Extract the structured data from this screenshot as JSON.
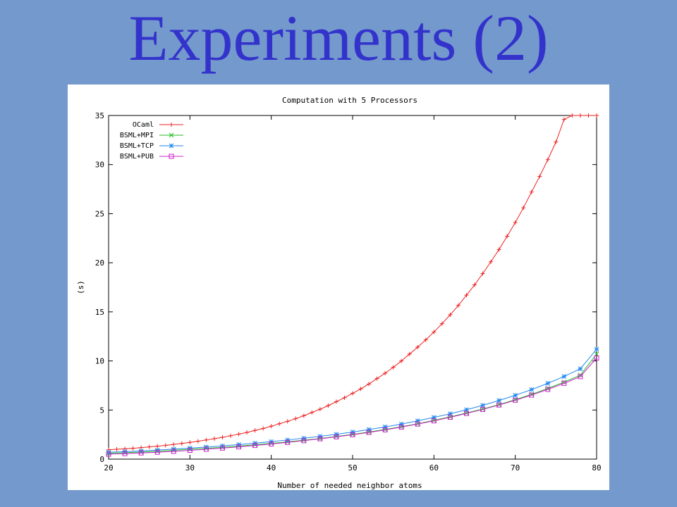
{
  "slide": {
    "title": "Experiments (2)"
  },
  "chart_data": {
    "type": "line",
    "title": "Computation with 5 Processors",
    "xlabel": "Number of needed neighbor atoms",
    "ylabel": "(s)",
    "xlim": [
      20,
      80
    ],
    "ylim": [
      0,
      35
    ],
    "xticks": [
      20,
      30,
      40,
      50,
      60,
      70,
      80
    ],
    "yticks": [
      0,
      5,
      10,
      15,
      20,
      25,
      30,
      35
    ],
    "grid": false,
    "legend_position": "top-left",
    "series": [
      {
        "name": "OCaml",
        "color": "#ee2222",
        "marker": "plus",
        "x": [
          20,
          21,
          22,
          23,
          24,
          25,
          26,
          27,
          28,
          29,
          30,
          31,
          32,
          33,
          34,
          35,
          36,
          37,
          38,
          39,
          40,
          41,
          42,
          43,
          44,
          45,
          46,
          47,
          48,
          49,
          50,
          51,
          52,
          53,
          54,
          55,
          56,
          57,
          58,
          59,
          60,
          61,
          62,
          63,
          64,
          65,
          66,
          67,
          68,
          69,
          70,
          71,
          72,
          73,
          74,
          75,
          76,
          77,
          78,
          79,
          80
        ],
        "y": [
          0.95,
          1.0,
          1.05,
          1.1,
          1.17,
          1.25,
          1.32,
          1.4,
          1.5,
          1.6,
          1.7,
          1.82,
          1.95,
          2.08,
          2.22,
          2.38,
          2.55,
          2.72,
          2.92,
          3.12,
          3.35,
          3.6,
          3.85,
          4.12,
          4.42,
          4.75,
          5.08,
          5.45,
          5.85,
          6.25,
          6.7,
          7.15,
          7.65,
          8.2,
          8.75,
          9.35,
          10.0,
          10.7,
          11.4,
          12.15,
          12.95,
          13.8,
          14.7,
          15.65,
          16.7,
          17.75,
          18.9,
          20.1,
          21.35,
          22.7,
          24.1,
          25.6,
          27.2,
          28.8,
          30.5,
          32.3,
          34.6,
          35.0,
          35.0,
          35.0,
          35.0
        ]
      },
      {
        "name": "BSML+MPI",
        "color": "#22bb22",
        "marker": "cross",
        "x": [
          20,
          22,
          24,
          26,
          28,
          30,
          32,
          34,
          36,
          38,
          40,
          42,
          44,
          46,
          48,
          50,
          52,
          54,
          56,
          58,
          60,
          62,
          64,
          66,
          68,
          70,
          72,
          74,
          76,
          78,
          80
        ],
        "y": [
          0.6,
          0.65,
          0.72,
          0.8,
          0.9,
          1.0,
          1.1,
          1.2,
          1.33,
          1.46,
          1.6,
          1.76,
          1.93,
          2.1,
          2.3,
          2.52,
          2.76,
          3.02,
          3.3,
          3.6,
          3.95,
          4.3,
          4.7,
          5.1,
          5.55,
          6.05,
          6.6,
          7.2,
          7.85,
          8.55,
          10.7
        ]
      },
      {
        "name": "BSML+TCP",
        "color": "#2288ee",
        "marker": "star",
        "x": [
          20,
          22,
          24,
          26,
          28,
          30,
          32,
          34,
          36,
          38,
          40,
          42,
          44,
          46,
          48,
          50,
          52,
          54,
          56,
          58,
          60,
          62,
          64,
          66,
          68,
          70,
          72,
          74,
          76,
          78,
          80
        ],
        "y": [
          0.7,
          0.76,
          0.83,
          0.92,
          1.02,
          1.12,
          1.23,
          1.35,
          1.48,
          1.62,
          1.78,
          1.95,
          2.13,
          2.32,
          2.53,
          2.76,
          3.01,
          3.28,
          3.57,
          3.9,
          4.25,
          4.62,
          5.03,
          5.48,
          5.97,
          6.5,
          7.08,
          7.72,
          8.42,
          9.2,
          11.2
        ]
      },
      {
        "name": "BSML+PUB",
        "color": "#cc22cc",
        "marker": "square",
        "x": [
          20,
          22,
          24,
          26,
          28,
          30,
          32,
          34,
          36,
          38,
          40,
          42,
          44,
          46,
          48,
          50,
          52,
          54,
          56,
          58,
          60,
          62,
          64,
          66,
          68,
          70,
          72,
          74,
          76,
          78,
          80
        ],
        "y": [
          0.5,
          0.56,
          0.63,
          0.7,
          0.79,
          0.89,
          1.0,
          1.12,
          1.25,
          1.39,
          1.54,
          1.7,
          1.88,
          2.07,
          2.27,
          2.48,
          2.72,
          2.98,
          3.26,
          3.57,
          3.9,
          4.26,
          4.65,
          5.06,
          5.51,
          6.0,
          6.52,
          7.1,
          7.72,
          8.4,
          10.3
        ]
      }
    ]
  }
}
